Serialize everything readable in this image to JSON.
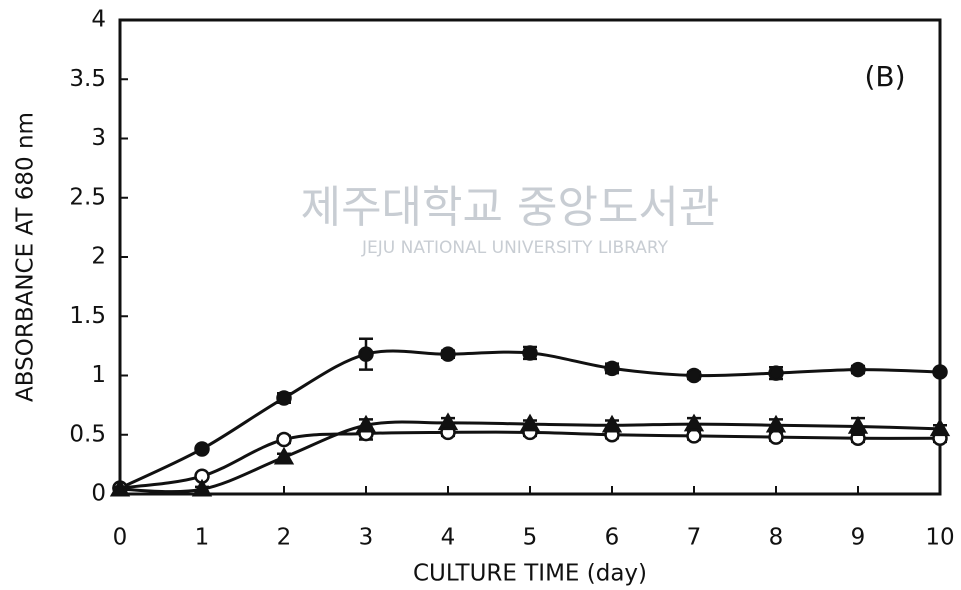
{
  "chart_data": {
    "type": "line",
    "annotation": "(B)",
    "x_label": "CULTURE TIME (day)",
    "y_label": "ABSORBANCE AT 680 nm",
    "watermark": [
      "제주대학교 중앙도서관",
      "JEJU NATIONAL UNIVERSITY LIBRARY"
    ],
    "x": [
      0,
      1,
      2,
      3,
      4,
      5,
      6,
      7,
      8,
      9,
      10
    ],
    "series": [
      {
        "color": "#111111",
        "marker": "filled-circle",
        "values": [
          0.05,
          0.38,
          0.81,
          1.18,
          1.18,
          1.19,
          1.06,
          1.0,
          1.02,
          1.05,
          1.03
        ],
        "errors": [
          0.02,
          0.02,
          0.04,
          0.13,
          0.03,
          0.05,
          0.04,
          0.03,
          0.05,
          0.03,
          0.02
        ]
      },
      {
        "color": "#111111",
        "marker": "open-circle",
        "values": [
          0.05,
          0.15,
          0.46,
          0.51,
          0.52,
          0.52,
          0.5,
          0.49,
          0.48,
          0.47,
          0.47
        ],
        "errors": [
          0.02,
          0.02,
          0.03,
          0.05,
          0.03,
          0.03,
          0.03,
          0.03,
          0.03,
          0.03,
          0.03
        ]
      },
      {
        "color": "#111111",
        "marker": "filled-triangle",
        "values": [
          0.04,
          0.04,
          0.31,
          0.58,
          0.6,
          0.59,
          0.58,
          0.59,
          0.58,
          0.57,
          0.55
        ],
        "errors": [
          0.02,
          0.02,
          0.03,
          0.05,
          0.04,
          0.03,
          0.04,
          0.05,
          0.05,
          0.07,
          0.03
        ]
      }
    ],
    "xlim": [
      0,
      10
    ],
    "xticks": [
      0,
      1,
      2,
      3,
      4,
      5,
      6,
      7,
      8,
      9,
      10
    ],
    "ylim": [
      0,
      4
    ],
    "yticks": [
      0,
      0.5,
      1,
      1.5,
      2,
      2.5,
      3,
      3.5,
      4
    ]
  }
}
